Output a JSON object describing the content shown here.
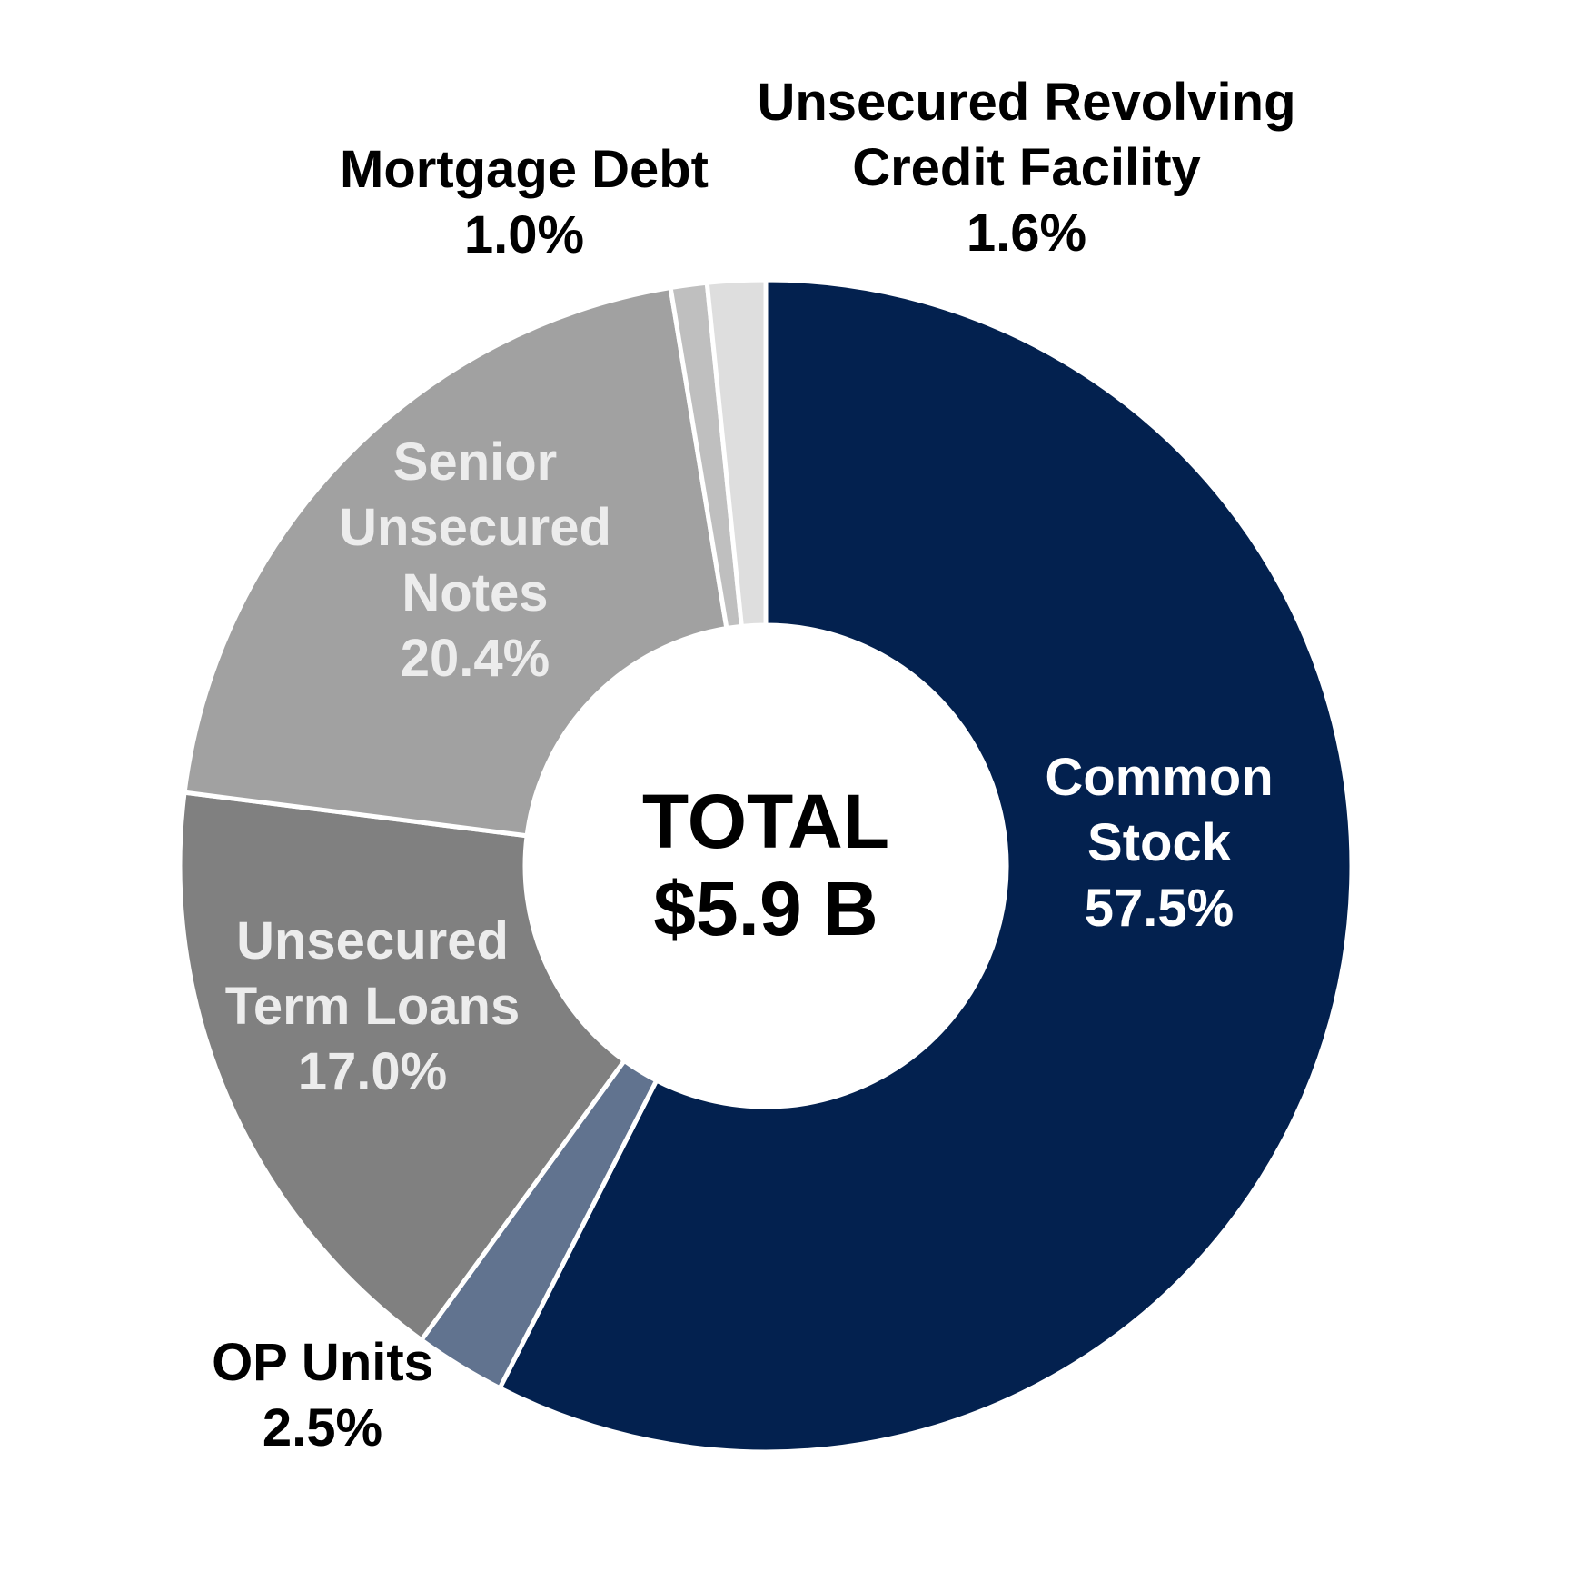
{
  "chart_data": {
    "type": "pie",
    "variant": "donut",
    "center_label": [
      "TOTAL",
      "$5.9 B"
    ],
    "slices": [
      {
        "name": "Common Stock",
        "label_lines": [
          "Common",
          "Stock"
        ],
        "value": 57.5,
        "value_label": "57.5%",
        "color": "#03214f",
        "text_color": "#ffffff",
        "label_position": "inside"
      },
      {
        "name": "OP Units",
        "label_lines": [
          "OP Units"
        ],
        "value": 2.5,
        "value_label": "2.5%",
        "color": "#61738f",
        "text_color": "#000000",
        "label_position": "outside"
      },
      {
        "name": "Unsecured Term Loans",
        "label_lines": [
          "Unsecured",
          "Term Loans"
        ],
        "value": 17.0,
        "value_label": "17.0%",
        "color": "#808080",
        "text_color": "#ececec",
        "label_position": "inside"
      },
      {
        "name": "Senior Unsecured Notes",
        "label_lines": [
          "Senior",
          "Unsecured",
          "Notes"
        ],
        "value": 20.4,
        "value_label": "20.4%",
        "color": "#a1a1a1",
        "text_color": "#ececec",
        "label_position": "inside"
      },
      {
        "name": "Mortgage Debt",
        "label_lines": [
          "Mortgage Debt"
        ],
        "value": 1.0,
        "value_label": "1.0%",
        "color": "#bfbfbf",
        "text_color": "#000000",
        "label_position": "outside"
      },
      {
        "name": "Unsecured Revolving Credit Facility",
        "label_lines": [
          "Unsecured Revolving",
          "Credit Facility"
        ],
        "value": 1.6,
        "value_label": "1.6%",
        "color": "#dedede",
        "text_color": "#000000",
        "label_position": "outside"
      }
    ],
    "start_angle": "12 o'clock",
    "direction": "clockwise",
    "slice_separator_color": "#ffffff"
  }
}
